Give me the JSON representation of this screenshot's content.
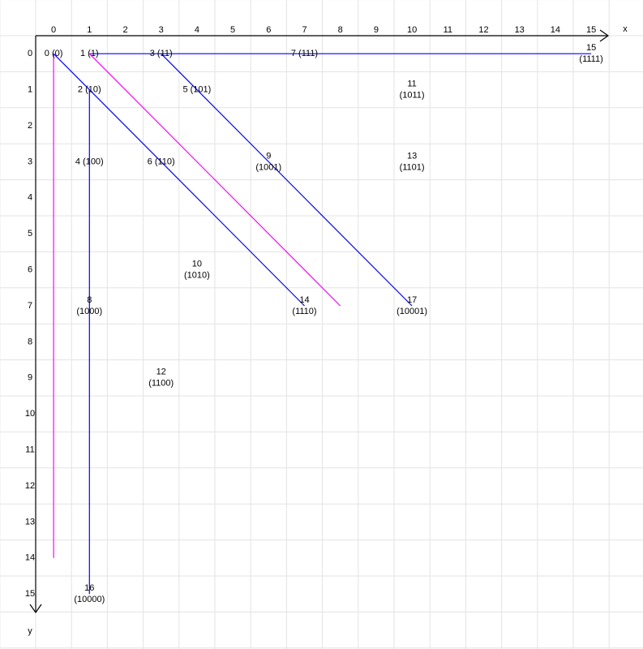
{
  "axes": {
    "x_label": "x",
    "y_label": "y",
    "xticks": [
      0,
      1,
      2,
      3,
      4,
      5,
      6,
      7,
      8,
      9,
      10,
      11,
      12,
      13,
      14,
      15
    ],
    "yticks": [
      0,
      1,
      2,
      3,
      4,
      5,
      6,
      7,
      8,
      9,
      10,
      11,
      12,
      13,
      14,
      15
    ]
  },
  "nodes": [
    {
      "lines": [
        "0 (0)"
      ],
      "x": 0,
      "y": 0
    },
    {
      "lines": [
        "1 (1)"
      ],
      "x": 1,
      "y": 0
    },
    {
      "lines": [
        "3 (11)"
      ],
      "x": 3,
      "y": 0
    },
    {
      "lines": [
        "7 (111)"
      ],
      "x": 7,
      "y": 0
    },
    {
      "lines": [
        "15",
        "(1111)"
      ],
      "x": 15,
      "y": 0
    },
    {
      "lines": [
        "2 (10)"
      ],
      "x": 1,
      "y": 1
    },
    {
      "lines": [
        "5 (101)"
      ],
      "x": 4,
      "y": 1
    },
    {
      "lines": [
        "11",
        "(1011)"
      ],
      "x": 10,
      "y": 1
    },
    {
      "lines": [
        "4 (100)"
      ],
      "x": 1,
      "y": 3
    },
    {
      "lines": [
        "6 (110)"
      ],
      "x": 3,
      "y": 3
    },
    {
      "lines": [
        "9",
        "(1001)"
      ],
      "x": 6,
      "y": 3
    },
    {
      "lines": [
        "13",
        "(1101)"
      ],
      "x": 10,
      "y": 3
    },
    {
      "lines": [
        "10",
        "(1010)"
      ],
      "x": 4,
      "y": 6
    },
    {
      "lines": [
        "8",
        "(1000)"
      ],
      "x": 1,
      "y": 7
    },
    {
      "lines": [
        "14",
        "(1110)"
      ],
      "x": 7,
      "y": 7
    },
    {
      "lines": [
        "17",
        "(10001)"
      ],
      "x": 10,
      "y": 7
    },
    {
      "lines": [
        "12",
        "(1100)"
      ],
      "x": 3,
      "y": 9
    },
    {
      "lines": [
        "16",
        "(10000)"
      ],
      "x": 1,
      "y": 15
    }
  ],
  "edges": [
    {
      "from": [
        1,
        0
      ],
      "to": [
        15,
        0
      ],
      "color": "#0000ff"
    },
    {
      "from": [
        0,
        0
      ],
      "to": [
        0,
        14
      ],
      "color": "#ff00ff"
    },
    {
      "from": [
        1,
        1
      ],
      "to": [
        1,
        15
      ],
      "color": "#0000ff"
    },
    {
      "from": [
        0,
        0
      ],
      "to": [
        7,
        7
      ],
      "color": "#0000ff"
    },
    {
      "from": [
        1,
        0
      ],
      "to": [
        8,
        7
      ],
      "color": "#ff00ff"
    },
    {
      "from": [
        3,
        0
      ],
      "to": [
        10,
        7
      ],
      "color": "#0000ff"
    }
  ]
}
